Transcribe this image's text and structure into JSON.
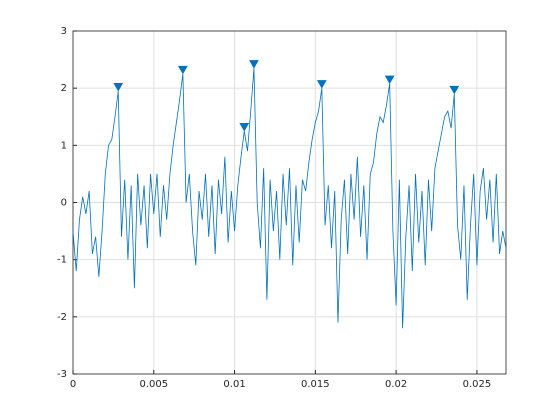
{
  "chart_data": {
    "type": "line",
    "xlim": [
      0,
      0.0268
    ],
    "ylim": [
      -3,
      3
    ],
    "xticks": [
      0,
      0.005,
      0.01,
      0.015,
      0.02,
      0.025
    ],
    "yticks": [
      -3,
      -2,
      -1,
      0,
      1,
      2,
      3
    ],
    "grid": true,
    "series": [
      {
        "color": "#0072bd",
        "marker": "none",
        "x": [
          0,
          0.0002,
          0.0004,
          0.0006,
          0.0008,
          0.001,
          0.0012,
          0.0014,
          0.0016,
          0.0018,
          0.002,
          0.0022,
          0.0024,
          0.0026,
          0.0028,
          0.003,
          0.0032,
          0.0034,
          0.0036,
          0.0038,
          0.004,
          0.0042,
          0.0044,
          0.0046,
          0.0048,
          0.005,
          0.0052,
          0.0054,
          0.0056,
          0.0058,
          0.006,
          0.0062,
          0.0064,
          0.0066,
          0.0068,
          0.007,
          0.0072,
          0.0074,
          0.0076,
          0.0078,
          0.008,
          0.0082,
          0.0084,
          0.0086,
          0.0088,
          0.009,
          0.0092,
          0.0094,
          0.0096,
          0.0098,
          0.01,
          0.0102,
          0.0104,
          0.0106,
          0.0108,
          0.011,
          0.0112,
          0.0114,
          0.0116,
          0.0118,
          0.012,
          0.0122,
          0.0124,
          0.0126,
          0.0128,
          0.013,
          0.0132,
          0.0134,
          0.0136,
          0.0138,
          0.014,
          0.0142,
          0.0144,
          0.0146,
          0.0148,
          0.015,
          0.0152,
          0.0154,
          0.0156,
          0.0158,
          0.016,
          0.0162,
          0.0164,
          0.0166,
          0.0168,
          0.017,
          0.0172,
          0.0174,
          0.0176,
          0.0178,
          0.018,
          0.0182,
          0.0184,
          0.0186,
          0.0188,
          0.019,
          0.0192,
          0.0194,
          0.0196,
          0.0198,
          0.02,
          0.0202,
          0.0204,
          0.0206,
          0.0208,
          0.021,
          0.0212,
          0.0214,
          0.0216,
          0.0218,
          0.022,
          0.0222,
          0.0224,
          0.0226,
          0.0228,
          0.023,
          0.0232,
          0.0234,
          0.0236,
          0.0238,
          0.024,
          0.0242,
          0.0244,
          0.0246,
          0.0248,
          0.025,
          0.0252,
          0.0254,
          0.0256,
          0.0258,
          0.026,
          0.0262,
          0.0264,
          0.0266,
          0.0268
        ],
        "values": [
          -0.5,
          -1.2,
          -0.3,
          0.1,
          -0.2,
          0.2,
          -0.9,
          -0.6,
          -1.3,
          -0.5,
          0.5,
          1.0,
          1.1,
          1.5,
          1.95,
          -0.6,
          0.4,
          -1.0,
          0.3,
          -1.5,
          0.5,
          -0.4,
          0.3,
          -0.8,
          0.5,
          -0.2,
          0.5,
          -0.6,
          0.3,
          -0.3,
          0.5,
          1.0,
          1.4,
          1.8,
          2.25,
          0.0,
          0.5,
          -0.5,
          -1.1,
          0.2,
          -0.3,
          0.5,
          -0.6,
          0.3,
          -0.9,
          0.4,
          -0.2,
          0.8,
          -0.7,
          0.2,
          -0.5,
          0.3,
          0.8,
          1.25,
          0.9,
          1.6,
          2.35,
          0.0,
          -0.8,
          0.6,
          -1.7,
          0.4,
          -0.5,
          0.2,
          -1.0,
          0.5,
          -0.4,
          0.6,
          -1.1,
          0.3,
          -0.7,
          0.4,
          0.2,
          0.7,
          1.1,
          1.4,
          1.6,
          2.0,
          -0.4,
          0.3,
          -0.8,
          0.2,
          -2.1,
          -0.3,
          0.4,
          -0.9,
          0.5,
          -0.3,
          0.8,
          -0.6,
          0.3,
          -1.0,
          0.5,
          0.7,
          1.2,
          1.5,
          1.4,
          1.7,
          2.08,
          -0.5,
          -1.8,
          0.4,
          -2.2,
          -0.6,
          0.3,
          -1.2,
          0.5,
          -0.7,
          0.2,
          -1.1,
          0.4,
          -0.5,
          0.6,
          0.9,
          1.2,
          1.5,
          1.6,
          1.3,
          1.9,
          -0.4,
          -1.0,
          0.3,
          -1.7,
          -0.4,
          0.5,
          -1.1,
          0.2,
          0.6,
          -0.3,
          0.4,
          -0.7,
          0.5,
          -0.9,
          -0.5,
          -0.8
        ]
      },
      {
        "color": "#0072bd",
        "marker": "triangle-down",
        "x": [
          0.0028,
          0.0068,
          0.0106,
          0.0112,
          0.0154,
          0.0196,
          0.0236
        ],
        "values": [
          1.95,
          2.25,
          1.25,
          2.35,
          2.0,
          2.08,
          1.9
        ]
      }
    ]
  }
}
